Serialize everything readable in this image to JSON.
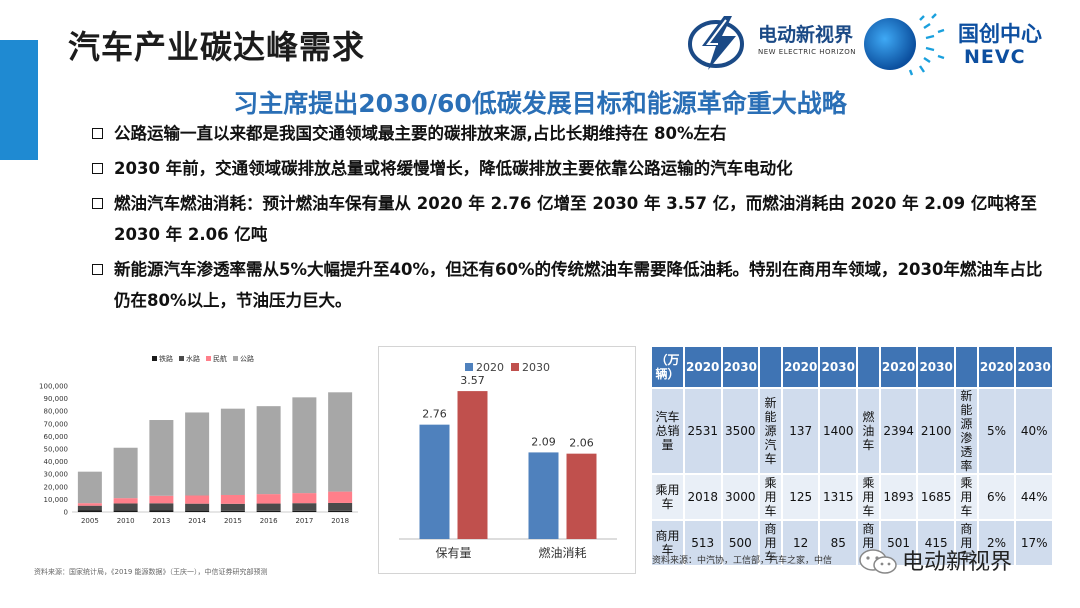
{
  "page": {
    "title": "汽车产业碳达峰需求",
    "subtitle": "习主席提出2030/60低碳发展目标和能源革命重大战略",
    "bullets": [
      "公路运输一直以来都是我国交通领域最主要的碳排放来源,占比长期维持在 80%左右",
      "2030 年前，交通领域碳排放总量或将缓慢增长，降低碳排放主要依靠公路运输的汽车电动化",
      "燃油汽车燃油消耗：预计燃油车保有量从 2020 年 2.76 亿增至 2030 年 3.57 亿，而燃油消耗由 2020 年 2.09 亿吨将至 2030 年 2.06 亿吨",
      "新能源汽车渗透率需从5%大幅提升至40%，但还有60%的传统燃油车需要降低油耗。特别在商用车领域，2030年燃油车占比仍在80%以上，节油压力巨大。"
    ]
  },
  "logos": {
    "partner_cn": "电动新视界",
    "partner_en": "NEW ELECTRIC HORIZON",
    "nevc_cn": "国创中心",
    "nevc_en": "NEVC"
  },
  "chart_data": [
    {
      "type": "bar",
      "stacked": true,
      "categories": [
        "2005",
        "2010",
        "2013",
        "2014",
        "2015",
        "2016",
        "2017",
        "2018"
      ],
      "series": [
        {
          "name": "铁路",
          "color": "#1a1a1a",
          "values": [
            1500,
            1300,
            1200,
            1100,
            1000,
            1000,
            1000,
            1000
          ]
        },
        {
          "name": "水路",
          "color": "#4a4a4a",
          "values": [
            3500,
            5500,
            5700,
            5500,
            5500,
            5700,
            6000,
            6200
          ]
        },
        {
          "name": "民航",
          "color": "#ff7f8a",
          "values": [
            2000,
            4200,
            6000,
            6500,
            7000,
            7500,
            8000,
            9000
          ]
        },
        {
          "name": "公路",
          "color": "#a7a7a7",
          "values": [
            25000,
            40000,
            60100,
            65900,
            68500,
            69800,
            76000,
            78800
          ]
        }
      ],
      "ylim": [
        0,
        100000
      ],
      "yticks": [
        "0",
        "10,000",
        "20,000",
        "30,000",
        "40,000",
        "50,000",
        "60,000",
        "70,000",
        "80,000",
        "90,000",
        "100,000"
      ],
      "legend": "top",
      "source": "资料来源：国家统计局，《2019 能源数据》（王庆一），中信证券研究部预测"
    },
    {
      "type": "bar",
      "categories": [
        "保有量",
        "燃油消耗"
      ],
      "series": [
        {
          "name": "2020",
          "color": "#4f81bd",
          "values": [
            2.76,
            2.09
          ]
        },
        {
          "name": "2030",
          "color": "#c0504d",
          "values": [
            3.57,
            2.06
          ]
        }
      ],
      "value_labels": [
        [
          "2.76",
          "2.09"
        ],
        [
          "3.57",
          "2.06"
        ]
      ],
      "ylim": [
        0,
        4.2
      ],
      "legend": "top"
    }
  ],
  "table": {
    "header": [
      "（万辆）",
      "2020",
      "2030",
      "",
      "2020",
      "2030",
      "",
      "2020",
      "2030",
      "",
      "2020",
      "2030"
    ],
    "rows": [
      [
        "汽车总销量",
        "2531",
        "3500",
        "新能源汽车",
        "137",
        "1400",
        "燃油车",
        "2394",
        "2100",
        "新能源渗透率",
        "5%",
        "40%"
      ],
      [
        "乘用车",
        "2018",
        "3000",
        "乘用车",
        "125",
        "1315",
        "乘用车",
        "1893",
        "1685",
        "乘用车",
        "6%",
        "44%"
      ],
      [
        "商用车",
        "513",
        "500",
        "商用车",
        "12",
        "85",
        "商用车",
        "501",
        "415",
        "商用车",
        "2%",
        "17%"
      ]
    ],
    "source": "资料来源：中汽协，工信部，汽车之家，中信"
  },
  "watermark": {
    "text": "电动新视界"
  },
  "colors": {
    "accent": "#1f8ad2",
    "subtitle": "#2a6fb6",
    "table_header": "#3f74b4"
  }
}
